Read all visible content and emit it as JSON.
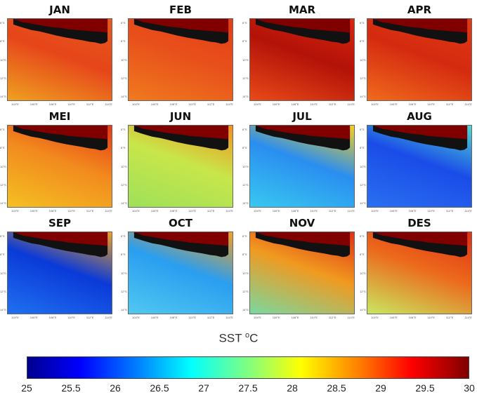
{
  "title": "",
  "colorbar": {
    "label": "SST",
    "unit": "°C",
    "min": 25,
    "max": 30,
    "ticks": [
      "25",
      "25.5",
      "26",
      "26.5",
      "27",
      "27.5",
      "28",
      "28.5",
      "29",
      "29.5",
      "30"
    ]
  },
  "panels": [
    {
      "month": "JAN",
      "shallow_colors": [
        "#e85a1c",
        "#f0a020"
      ],
      "deep_color": "#e6451a"
    },
    {
      "month": "FEB",
      "shallow_colors": [
        "#e63d14",
        "#f07a1e"
      ],
      "deep_color": "#e8501b"
    },
    {
      "month": "MAR",
      "shallow_colors": [
        "#d8260e",
        "#e84a18"
      ],
      "deep_color": "#b31208"
    },
    {
      "month": "APR",
      "shallow_colors": [
        "#e23a14",
        "#f06a1c"
      ],
      "deep_color": "#d42a10"
    },
    {
      "month": "MEI",
      "shallow_colors": [
        "#e63a14",
        "#f4c022"
      ],
      "deep_color": "#f28a1e"
    },
    {
      "month": "JUN",
      "shallow_colors": [
        "#f4901e",
        "#9ee05a"
      ],
      "deep_color": "#c8e64a"
    },
    {
      "month": "JUL",
      "shallow_colors": [
        "#f6d020",
        "#38c8f0"
      ],
      "deep_color": "#2a8ef0"
    },
    {
      "month": "AUG",
      "shallow_colors": [
        "#50d8d0",
        "#2a70f0"
      ],
      "deep_color": "#1a4ce8"
    },
    {
      "month": "SEP",
      "shallow_colors": [
        "#f0a020",
        "#2070f0"
      ],
      "deep_color": "#0a3ad8"
    },
    {
      "month": "OCT",
      "shallow_colors": [
        "#f4a020",
        "#50c8f0"
      ],
      "deep_color": "#2a9ef0"
    },
    {
      "month": "NOV",
      "shallow_colors": [
        "#e23014",
        "#7ad8a0"
      ],
      "deep_color": "#f09a20"
    },
    {
      "month": "DES",
      "shallow_colors": [
        "#e23014",
        "#c8e860"
      ],
      "deep_color": "#ec6a1c"
    }
  ],
  "lon_ticks": [
    "104°E",
    "106°E",
    "108°E",
    "110°E",
    "112°E",
    "114°E"
  ],
  "lat_ticks": [
    "6°S",
    "8°S",
    "10°S",
    "12°S",
    "14°S"
  ]
}
